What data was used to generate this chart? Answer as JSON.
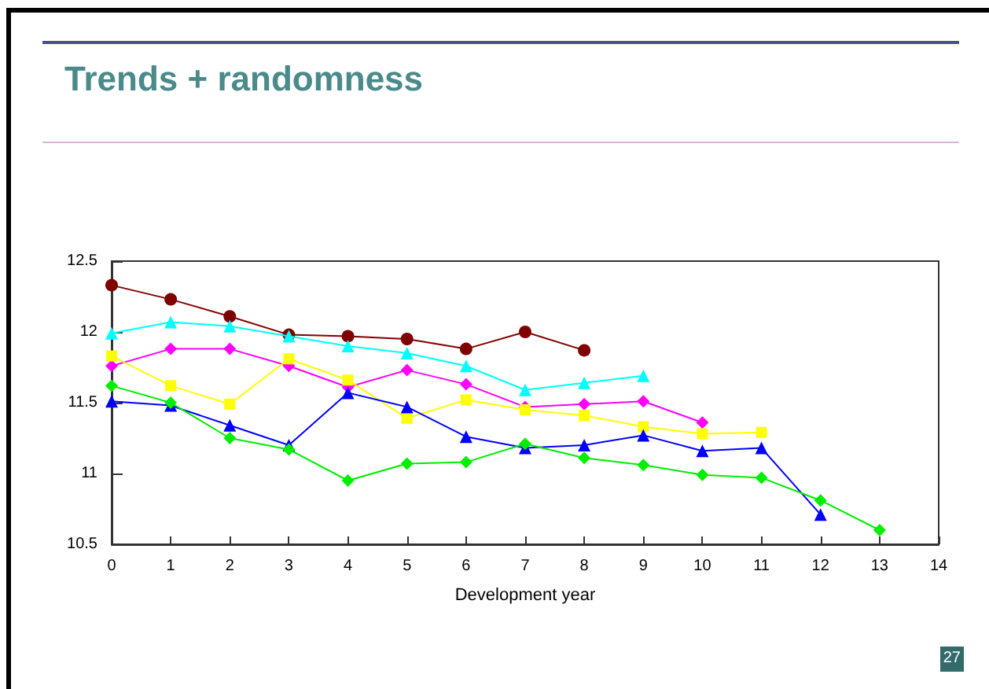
{
  "chart_data": {
    "type": "line",
    "title": "Trends + randomness",
    "xlabel": "Development year",
    "annotations": [
      "27"
    ],
    "xlim": [
      0,
      14
    ],
    "xticks": [
      0,
      1,
      2,
      3,
      4,
      5,
      6,
      7,
      8,
      9,
      10,
      11,
      12,
      13,
      14
    ],
    "ylim": [
      10.5,
      12.5
    ],
    "yticks": [
      10.5,
      11,
      11.5,
      12,
      12.5
    ],
    "series": [
      {
        "color": "#800000",
        "marker": "circle",
        "x": [
          0,
          1,
          2,
          3,
          4,
          5,
          6,
          7,
          8
        ],
        "values": [
          12.33,
          12.23,
          12.11,
          11.98,
          11.97,
          11.95,
          11.88,
          12.0,
          11.87
        ]
      },
      {
        "color": "#00ffff",
        "marker": "triangle",
        "x": [
          0,
          1,
          2,
          3,
          4,
          5,
          6,
          7,
          8,
          9
        ],
        "values": [
          11.99,
          12.07,
          12.04,
          11.97,
          11.9,
          11.85,
          11.76,
          11.59,
          11.64,
          11.69
        ]
      },
      {
        "color": "#ff00ff",
        "marker": "diamond",
        "x": [
          0,
          1,
          2,
          3,
          4,
          5,
          6,
          7,
          8,
          9,
          10
        ],
        "values": [
          11.76,
          11.88,
          11.88,
          11.76,
          11.61,
          11.73,
          11.63,
          11.47,
          11.49,
          11.51,
          11.36
        ]
      },
      {
        "color": "#ffff00",
        "marker": "square",
        "x": [
          0,
          1,
          2,
          3,
          4,
          5,
          6,
          7,
          8,
          9,
          10,
          11
        ],
        "values": [
          11.83,
          11.62,
          11.49,
          11.81,
          11.66,
          11.39,
          11.52,
          11.45,
          11.41,
          11.33,
          11.28,
          11.29
        ]
      },
      {
        "color": "#0000ff",
        "marker": "triangle",
        "x": [
          0,
          1,
          2,
          3,
          4,
          5,
          6,
          7,
          8,
          9,
          10,
          11,
          12
        ],
        "values": [
          11.51,
          11.48,
          11.34,
          11.2,
          11.57,
          11.47,
          11.26,
          11.18,
          11.2,
          11.27,
          11.16,
          11.18,
          10.71
        ]
      },
      {
        "color": "#00ee00",
        "marker": "diamond",
        "x": [
          0,
          1,
          2,
          3,
          4,
          5,
          6,
          7,
          8,
          9,
          10,
          11,
          12,
          13
        ],
        "values": [
          11.62,
          11.5,
          11.25,
          11.17,
          10.95,
          11.07,
          11.08,
          11.21,
          11.11,
          11.06,
          10.99,
          10.97,
          10.81,
          10.6
        ]
      }
    ]
  }
}
